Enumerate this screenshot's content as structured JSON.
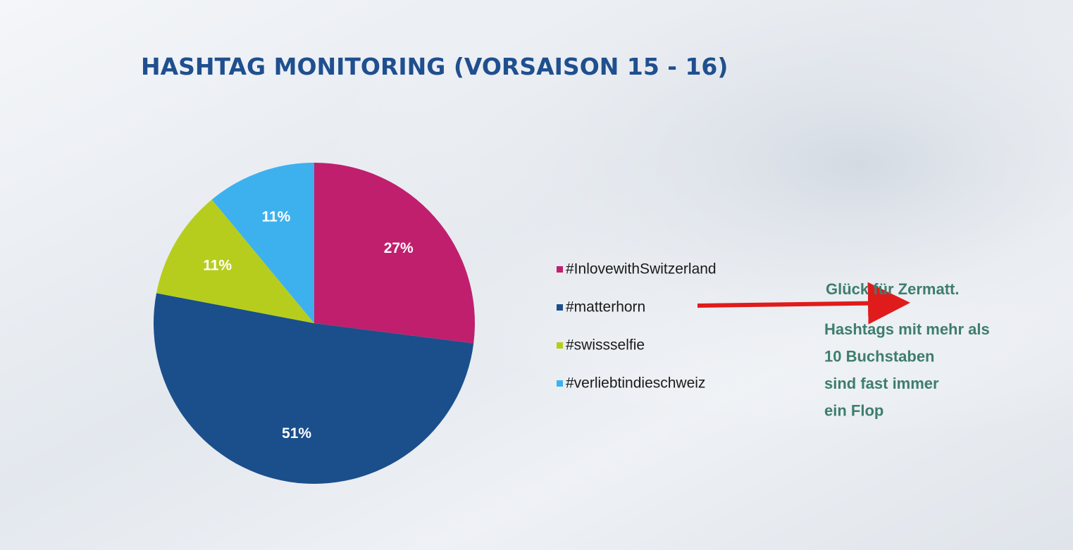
{
  "chart_data": {
    "type": "pie",
    "title": "HASHTAG MONITORING (VORSAISON 15 - 16)",
    "categories": [
      "#InlovewithSwitzerland",
      "#matterhorn",
      "#swissselfie",
      "#verliebtindieschweiz"
    ],
    "values": [
      27,
      51,
      11,
      11
    ],
    "value_labels": [
      "27%",
      "51%",
      "11%",
      "11%"
    ],
    "colors": [
      "#c01f6e",
      "#1a4f8b",
      "#b7cd1e",
      "#3db1ee"
    ],
    "legend": "right",
    "annotation": "Glück für Zermatt.",
    "note_lines": [
      "Hashtags mit mehr als",
      "10 Buchstaben",
      "sind fast immer",
      "ein Flop"
    ]
  }
}
